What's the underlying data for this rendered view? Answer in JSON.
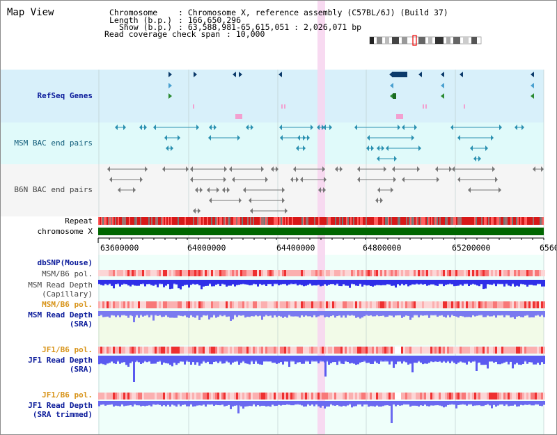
{
  "view": {
    "title": "Map View"
  },
  "info": {
    "chromosome_key": "Chromosome",
    "chromosome_val": ": Chromosome X, reference assembly (C57BL/6J) (Build 37)",
    "length_key": "Length (b.p.)",
    "length_val": ": 166,650,296",
    "show_key": "Show (b.p.)",
    "show_val": ": 63,588,981-65,615,051 : 2,026,071 bp",
    "coverage_key": "Read coverage check span",
    "coverage_val": ": 10,000"
  },
  "tracks": {
    "refseq": "RefSeq Genes",
    "msm_bac": "MSM BAC end pairs",
    "b6n_bac": "B6N BAC end pairs",
    "repeat": "Repeat",
    "chromosome": "chromosome X",
    "dbsnp": "dbSNP(Mouse)",
    "msm_b6_pol_cap": "MSM/B6 pol.",
    "msm_depth_cap_1": "MSM Read Depth",
    "msm_depth_cap_2": "(Capillary)",
    "msm_b6_pol_sra": "MSM/B6 pol.",
    "msm_depth_sra_1": "MSM Read Depth",
    "msm_depth_sra_2": "(SRA)",
    "jf1_b6_pol_1": "JF1/B6 pol.",
    "jf1_depth_1": "JF1 Read Depth",
    "jf1_depth_1b": "(SRA)",
    "jf1_b6_pol_2": "JF1/B6 pol.",
    "jf1_depth_2": "JF1 Read Depth",
    "jf1_depth_2b": "(SRA trimmed)"
  },
  "axis": {
    "ticks": [
      "63600000",
      "64000000",
      "64400000",
      "64800000",
      "65200000",
      "6560"
    ]
  },
  "colors": {
    "refseq_bg": "#d8f0fa",
    "msm_bg": "#e0fafa",
    "b6n_bg": "#f5f5f5",
    "lower_bg": "#effffa",
    "highlight": "#f5d2ee",
    "chromosome": "#006600",
    "depth_blue": "#3a3aee"
  }
}
